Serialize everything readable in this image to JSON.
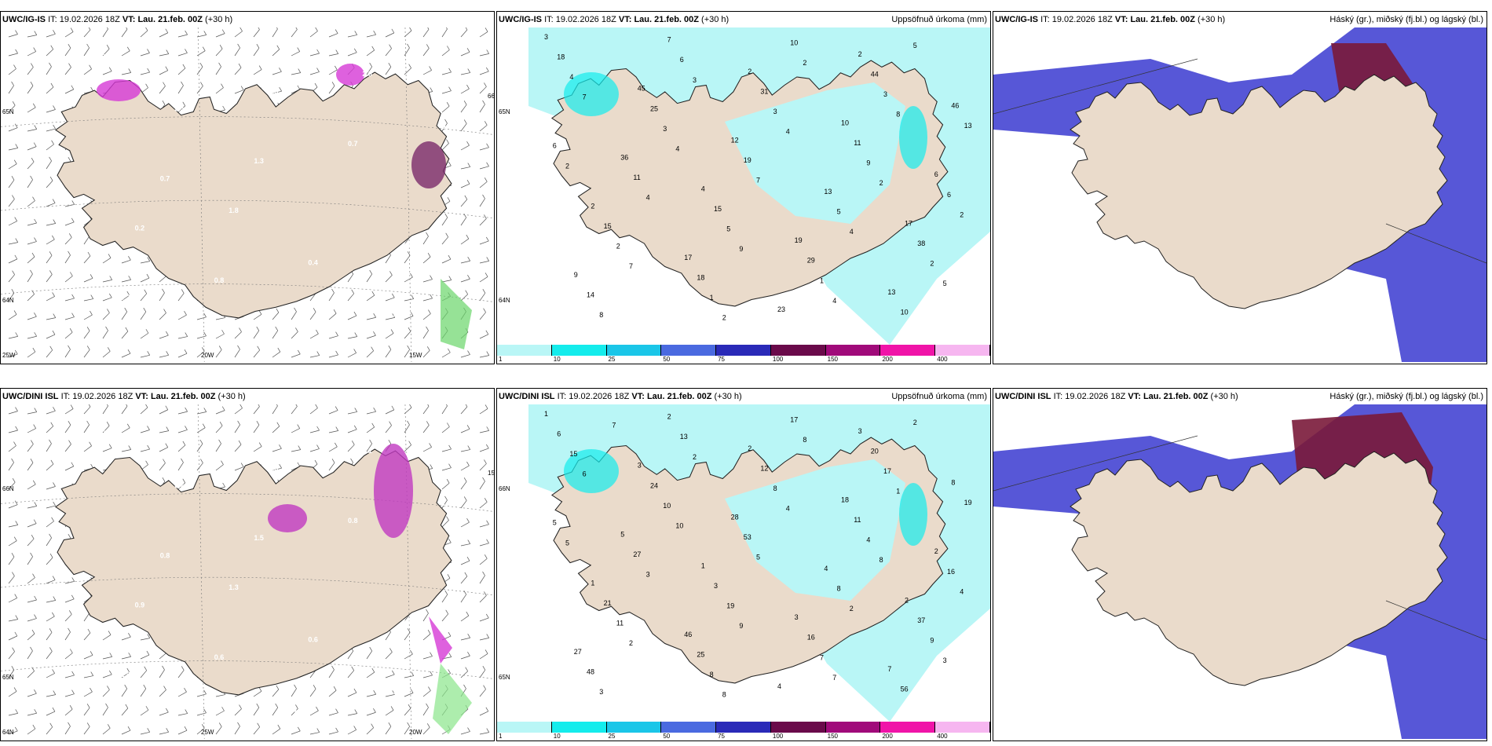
{
  "rows": [
    {
      "model": "UWC/IG-IS",
      "it_label": "IT:",
      "it_value": "19.02.2026 18Z",
      "vt_label": "VT:",
      "vt_value": "Lau. 21.feb. 00Z",
      "lead": "(+30 h)",
      "panels": {
        "wind": {
          "grid_labels": [
            "65N",
            "64N",
            "25W",
            "20W",
            "15W",
            "66N"
          ],
          "values": [
            "0.6",
            "1.8",
            "2.8",
            "0.2",
            "0.5",
            "2.8",
            "3.5",
            "0.4",
            "0.3",
            "0.8",
            "0.7",
            "0.7",
            "1.3",
            "2.4",
            "0.7"
          ]
        },
        "precip": {
          "title": "Uppsöfnuð úrkoma (mm)",
          "grid_labels": [
            "65N",
            "64N"
          ],
          "values": [
            "3",
            "4",
            "2",
            "2",
            "2",
            "17",
            "45",
            "19",
            "46",
            "17",
            "10",
            "9",
            "12",
            "13",
            "36",
            "23",
            "6",
            "7",
            "13",
            "18",
            "15",
            "44",
            "15",
            "31",
            "38",
            "25",
            "29",
            "13",
            "18",
            "11",
            "14",
            "19",
            "10",
            "11",
            "10",
            "6",
            "6",
            "5",
            "4",
            "5",
            "3",
            "2",
            "3",
            "2",
            "3",
            "1",
            "6",
            "1",
            "9",
            "8",
            "7",
            "5",
            "4",
            "2",
            "2",
            "3",
            "4",
            "7",
            "9",
            "8",
            "7",
            "4",
            "5",
            "4",
            "4",
            "2",
            "2",
            "2"
          ]
        },
        "cloud": {
          "title": "Háský (gr.), miðský (fj.bl.) og lágský (bl.)"
        }
      }
    },
    {
      "model": "UWC/DINI ISL",
      "it_label": "IT:",
      "it_value": "19.02.2026 18Z",
      "vt_label": "VT:",
      "vt_value": "Lau. 21.feb. 00Z",
      "lead": "(+30 h)",
      "panels": {
        "wind": {
          "grid_labels": [
            "66N",
            "65N",
            "64N",
            "25W",
            "20W",
            "15W"
          ],
          "values": [
            "-2.7",
            "1.3",
            "1.1",
            "0.9",
            "0.5",
            "0.4",
            "0.6",
            "0.6",
            "1.1",
            "0.6",
            "0.8",
            "1.8",
            "1.5",
            "1.6",
            "0.8",
            "1.8"
          ]
        },
        "precip": {
          "title": "Uppsöfnuð úrkoma (mm)",
          "grid_labels": [
            "66N",
            "65N"
          ],
          "values": [
            "1",
            "1",
            "3",
            "1",
            "2",
            "2",
            "3",
            "3",
            "8",
            "46",
            "18",
            "27",
            "28",
            "7",
            "5",
            "4",
            "2",
            "2",
            "4",
            "6",
            "3",
            "20",
            "21",
            "12",
            "37",
            "24",
            "16",
            "19",
            "25",
            "11",
            "48",
            "53",
            "56",
            "27",
            "17",
            "16",
            "13",
            "8",
            "15",
            "19",
            "17",
            "11",
            "8",
            "9",
            "10",
            "7",
            "5",
            "8",
            "4",
            "3",
            "5",
            "2",
            "3",
            "8",
            "4",
            "2",
            "2",
            "6",
            "9",
            "1",
            "2",
            "4",
            "3",
            "10",
            "7",
            "5",
            "8",
            "8",
            "7"
          ]
        },
        "cloud": {
          "title": "Háský (gr.), miðský (fj.bl.) og lágský (bl.)"
        }
      }
    }
  ],
  "colorbar": {
    "labels": [
      "1",
      "10",
      "25",
      "50",
      "75",
      "100",
      "150",
      "200",
      "400"
    ],
    "colors": [
      "#b9f6f6",
      "#14ecec",
      "#1ac6e8",
      "#4a6ae0",
      "#2a2ab8",
      "#6a0a4a",
      "#a00a7a",
      "#f014a8",
      "#f6b6f0"
    ]
  },
  "colors": {
    "land": "#eadbcb",
    "coast": "#222222",
    "precip_light": "#b9f6f6",
    "precip_mid": "#14ecec",
    "cloud_high": "#7a1a3a",
    "cloud_mid": "#3a3ad0",
    "cloud_low": "#4a4aa8"
  }
}
